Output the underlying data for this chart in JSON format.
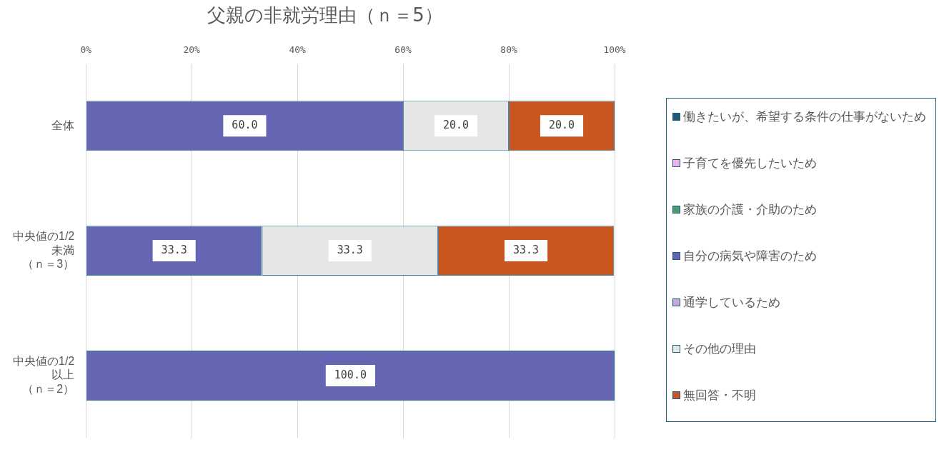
{
  "chart_data": {
    "type": "bar",
    "orientation": "horizontal",
    "stacked": true,
    "title": "父親の非就労理由（ｎ＝5）",
    "categories": [
      "全体",
      "中央値の1/2未満（ｎ＝3）",
      "中央値の1/2以上（ｎ＝2）"
    ],
    "series": [
      {
        "name": "働きたいが、希望する条件の仕事がないため",
        "color": "#1f5c7a",
        "values": [
          0,
          0,
          0
        ]
      },
      {
        "name": "子育てを優先したいため",
        "color": "#e8b4e8",
        "values": [
          0,
          0,
          0
        ]
      },
      {
        "name": "家族の介護・介助のため",
        "color": "#4f9a6a",
        "values": [
          0,
          0,
          0
        ]
      },
      {
        "name": "自分の病気や障害のため",
        "color": "#6466b4",
        "values": [
          60,
          33.3,
          100
        ],
        "value_labels": [
          "60.0",
          "33.3",
          "100.0"
        ]
      },
      {
        "name": "通学しているため",
        "color": "#c8a8d8",
        "values": [
          0,
          0,
          0
        ]
      },
      {
        "name": "その他の理由",
        "color": "#e6e6e6",
        "values": [
          20,
          33.3,
          0
        ],
        "value_labels": [
          "20.0",
          "33.3",
          null
        ]
      },
      {
        "name": "無回答・不明",
        "color": "#c8561e",
        "values": [
          20,
          33.3,
          0
        ],
        "value_labels": [
          "20.0",
          "33.3",
          null
        ]
      }
    ],
    "xlim": [
      0,
      100
    ],
    "xticks": [
      {
        "value": 0,
        "label": "0%"
      },
      {
        "value": 20,
        "label": "20%"
      },
      {
        "value": 40,
        "label": "40%"
      },
      {
        "value": 60,
        "label": "60%"
      },
      {
        "value": 80,
        "label": "80%"
      },
      {
        "value": 100,
        "label": "100%"
      }
    ],
    "grid": "x",
    "legend": "right"
  }
}
